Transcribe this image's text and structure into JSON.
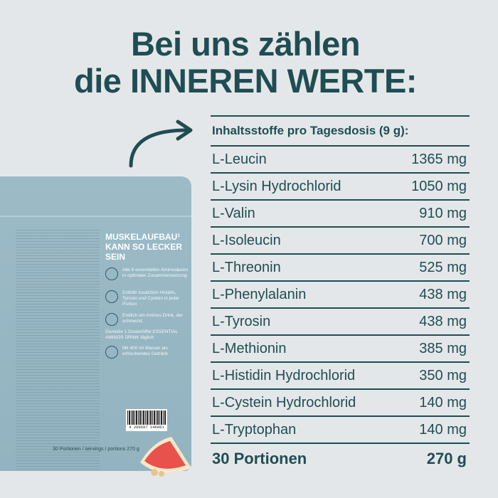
{
  "headline": {
    "line1": "Bei uns zählen",
    "line2": "die INNEREN WERTE:"
  },
  "table": {
    "header": "Inhaltsstoffe pro Tagesdosis  (9 g):",
    "rows": [
      {
        "name": "L-Leucin",
        "amount": "1365 mg"
      },
      {
        "name": "L-Lysin Hydrochlorid",
        "amount": "1050 mg"
      },
      {
        "name": "L-Valin",
        "amount": "910 mg"
      },
      {
        "name": "L-Isoleucin",
        "amount": "700 mg"
      },
      {
        "name": "L-Threonin",
        "amount": "525 mg"
      },
      {
        "name": "L-Phenylalanin",
        "amount": "438 mg"
      },
      {
        "name": "L-Tyrosin",
        "amount": "438 mg"
      },
      {
        "name": "L-Methionin",
        "amount": "385 mg"
      },
      {
        "name": "L-Histidin Hydrochlorid",
        "amount": "350 mg"
      },
      {
        "name": "L-Cystein Hydrochlorid",
        "amount": "140 mg"
      },
      {
        "name": "L-Tryptophan",
        "amount": "140 mg"
      }
    ],
    "footer": {
      "name": "30 Portionen",
      "amount": "270 g"
    }
  },
  "package": {
    "headline": "MUSKELAUFBAU¹ KANN SO LECKER SEIN",
    "features": [
      "Alle 8 essentiellen Aminosäuren in optimaler Zusammensetzung",
      "Enthält zusätzlich Histidin, Tyrosin und Cystein in jeder Portion",
      "Endlich ein Aminos Drink, der schmeckt.",
      "Genieße 1 Dosierlöffel ESSENTIAL AMINOS DRINK täglich",
      "Mit 400 ml Wasser als erfrischendes Getränk"
    ],
    "barcode": "4 260697 146061",
    "portions": "30 Portionen / servings / portions   270 g"
  },
  "colors": {
    "background": "#e4e7e9",
    "text": "#1f4d53",
    "package": "#97b7c4"
  }
}
